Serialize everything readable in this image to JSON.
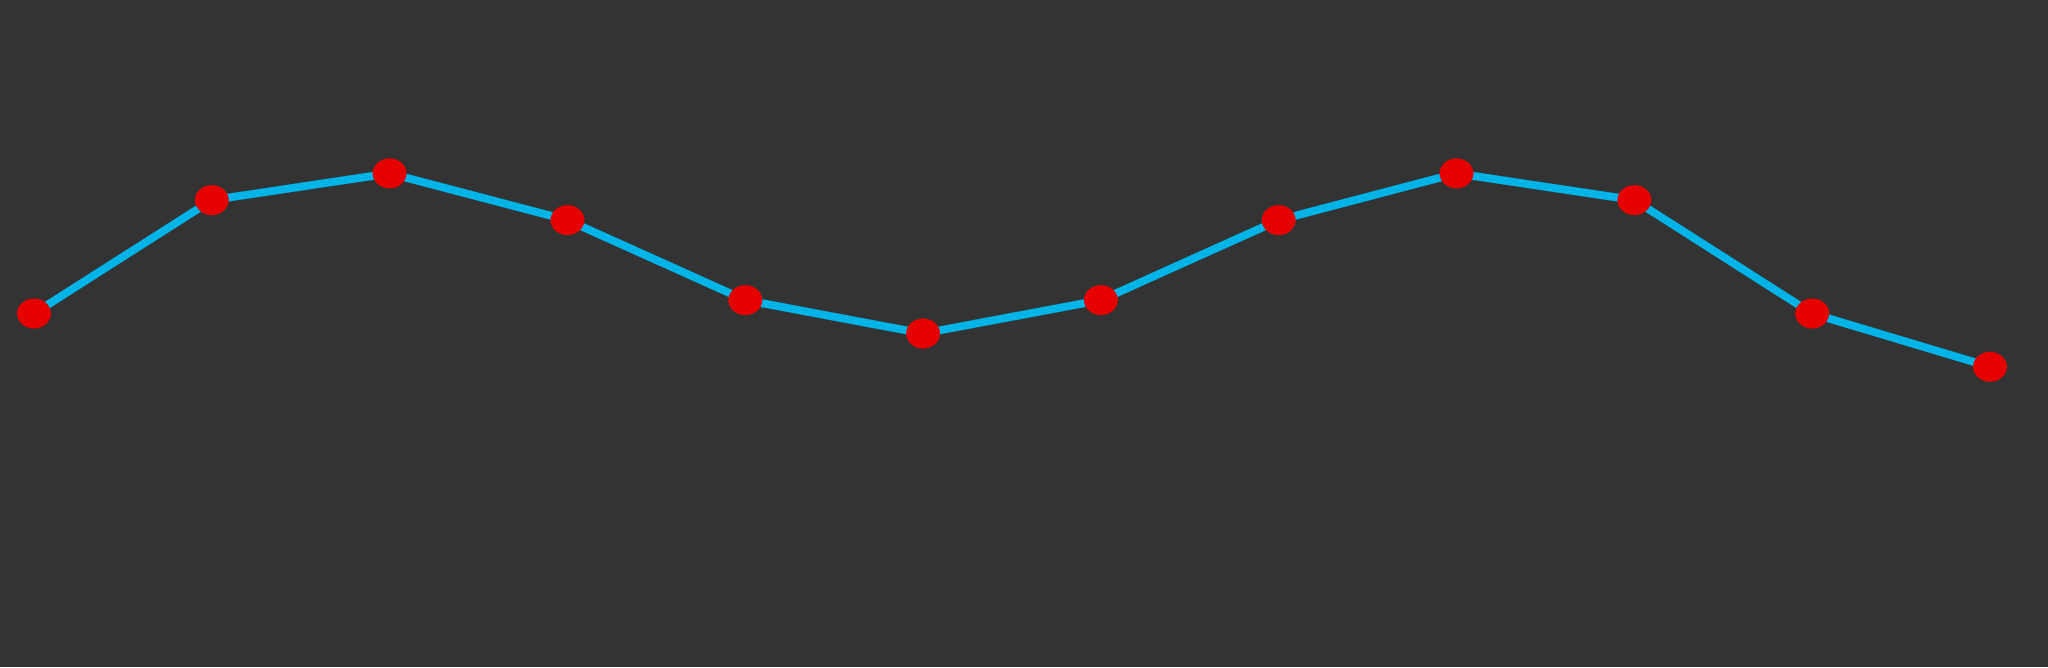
{
  "colors": {
    "background": "#333333",
    "line": "#00b4e8",
    "marker": "#e60000"
  },
  "chart_data": {
    "type": "line",
    "title": "",
    "xlabel": "",
    "ylabel": "",
    "grid": false,
    "legend": "none",
    "x": [
      1,
      2,
      3,
      4,
      5,
      6,
      7,
      8,
      9,
      10,
      11,
      12
    ],
    "xlim": [
      1,
      12
    ],
    "ylim": [
      0,
      1
    ],
    "series": [
      {
        "values": [
          0.53,
          0.7,
          0.74,
          0.67,
          0.55,
          0.5,
          0.55,
          0.67,
          0.74,
          0.7,
          0.53,
          0.45
        ]
      }
    ]
  }
}
